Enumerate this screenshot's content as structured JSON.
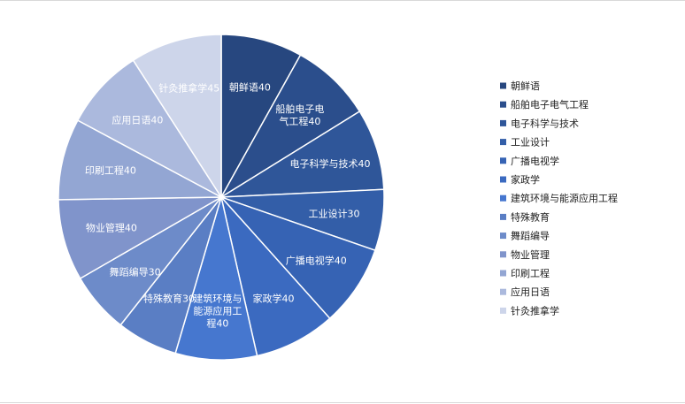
{
  "chart_data": {
    "type": "pie",
    "title": "",
    "categories": [
      "朝鲜语",
      "船舶电子电气工程",
      "电子科学与技术",
      "工业设计",
      "广播电视学",
      "家政学",
      "建筑环境与能源应用工程",
      "特殊教育",
      "舞蹈编导",
      "物业管理",
      "印刷工程",
      "应用日语",
      "针灸推拿学"
    ],
    "values": [
      40,
      40,
      40,
      30,
      40,
      40,
      40,
      30,
      30,
      40,
      40,
      40,
      45
    ],
    "colors": [
      "#27477f",
      "#2b4e8c",
      "#2f5699",
      "#335ea8",
      "#3663b4",
      "#3b6ac0",
      "#4677cf",
      "#5a7ec4",
      "#6d8bc9",
      "#8094cb",
      "#93a6d3",
      "#abb9dd",
      "#cdd5ea"
    ],
    "data_labels": [
      [
        "朝鲜语40"
      ],
      [
        "船舶电子电",
        "气工程40"
      ],
      [
        "电子科学与技术40"
      ],
      [
        "工业设计30"
      ],
      [
        "广播电视学40"
      ],
      [
        "家政学40"
      ],
      [
        "建筑环境与",
        "能源应用工",
        "程40"
      ],
      [
        "特殊教育30"
      ],
      [
        "舞蹈编导30"
      ],
      [
        "物业管理40"
      ],
      [
        "印刷工程40"
      ],
      [
        "应用日语40"
      ],
      [
        "针灸推拿学45"
      ]
    ],
    "legend_position": "right"
  }
}
